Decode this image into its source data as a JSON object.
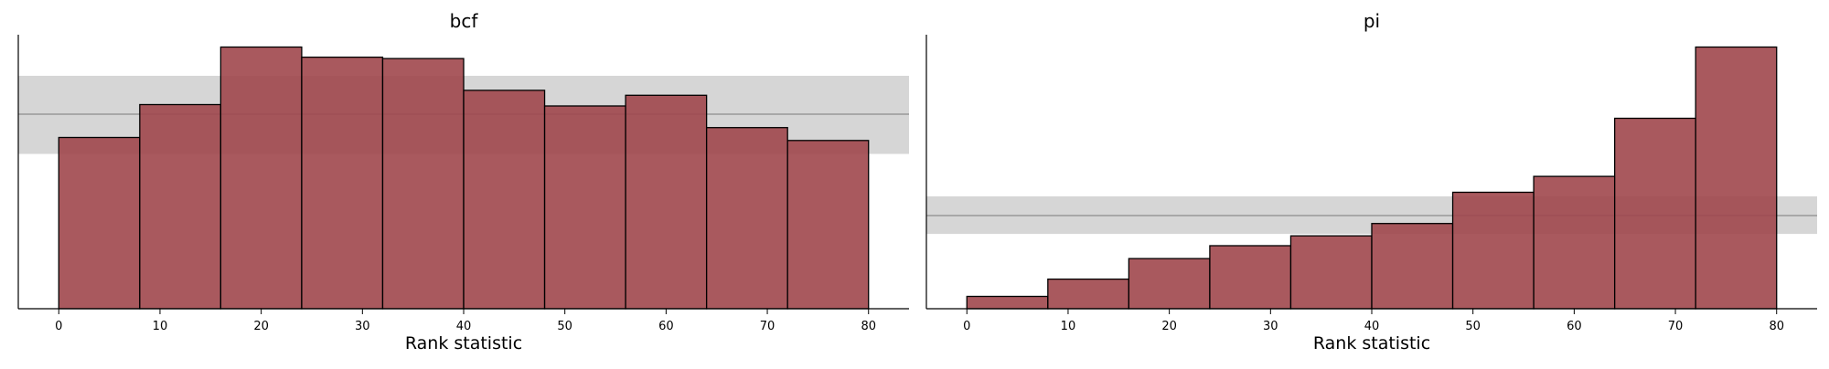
{
  "chart_data": [
    {
      "type": "bar",
      "subtype": "rank-histogram",
      "title": "bcf",
      "xlabel": "Rank statistic",
      "ylabel": "",
      "xlim": [
        -4,
        84
      ],
      "ylim": [
        0,
        1.0
      ],
      "xticks": [
        0,
        10,
        20,
        30,
        40,
        50,
        60,
        70,
        80
      ],
      "bin_edges": [
        0,
        8,
        16,
        24,
        32,
        40,
        48,
        56,
        64,
        72,
        80
      ],
      "values": [
        0.625,
        0.745,
        0.955,
        0.918,
        0.913,
        0.797,
        0.74,
        0.779,
        0.661,
        0.614
      ],
      "reference_line": 0.71,
      "reference_band": [
        0.565,
        0.85
      ],
      "grid": false,
      "bar_color": "#a0474c",
      "band_color": "#d6d6d6"
    },
    {
      "type": "bar",
      "subtype": "rank-histogram",
      "title": "pi",
      "xlabel": "Rank statistic",
      "ylabel": "",
      "xlim": [
        -4,
        84
      ],
      "ylim": [
        0,
        1.0
      ],
      "xticks": [
        0,
        10,
        20,
        30,
        40,
        50,
        60,
        70,
        80
      ],
      "bin_edges": [
        0,
        8,
        16,
        24,
        32,
        40,
        48,
        56,
        64,
        72,
        80
      ],
      "values": [
        0.045,
        0.108,
        0.183,
        0.23,
        0.266,
        0.311,
        0.425,
        0.483,
        0.695,
        0.955
      ],
      "reference_line": 0.34,
      "reference_band": [
        0.273,
        0.41
      ],
      "grid": false,
      "bar_color": "#a0474c",
      "band_color": "#d6d6d6"
    }
  ]
}
